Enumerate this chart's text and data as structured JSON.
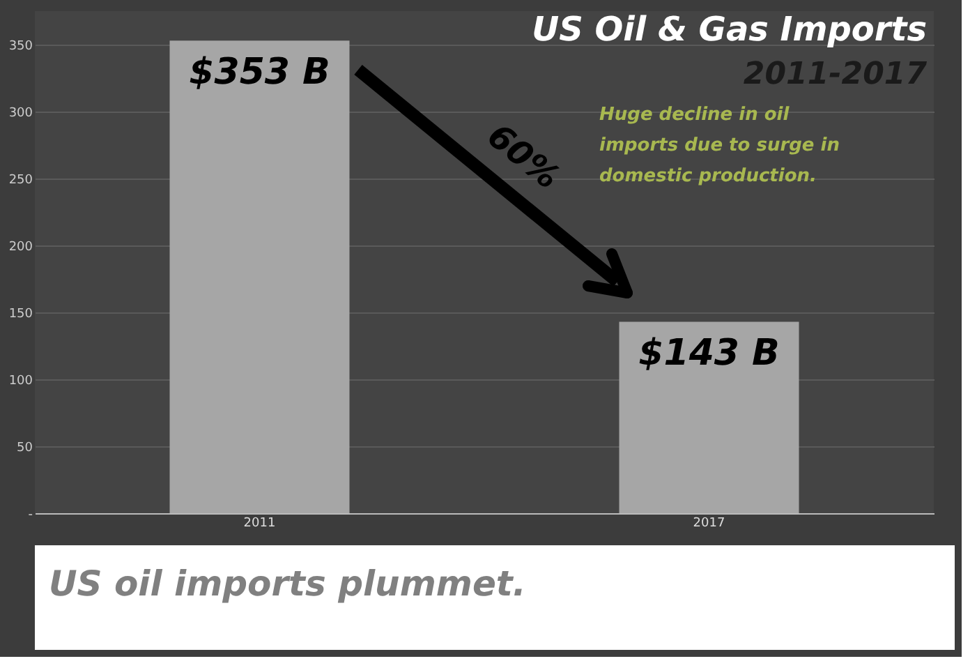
{
  "chart_data": {
    "type": "bar",
    "title": "US Oil & Gas Imports",
    "subtitle": "2011-2017",
    "categories": [
      "2011",
      "2017"
    ],
    "values": [
      353,
      143
    ],
    "color": "#a6a6a6",
    "value_labels": [
      "$353 B",
      "$143 B"
    ],
    "ylim": [
      0,
      375
    ],
    "yticks": [
      {
        "value": 0,
        "label": "-"
      },
      50,
      100,
      150,
      200,
      250,
      300,
      350
    ],
    "grid": "y",
    "annotations": [
      "60%",
      "Huge decline in oil imports due to surge in domestic production.",
      "US oil imports plummet."
    ]
  }
}
